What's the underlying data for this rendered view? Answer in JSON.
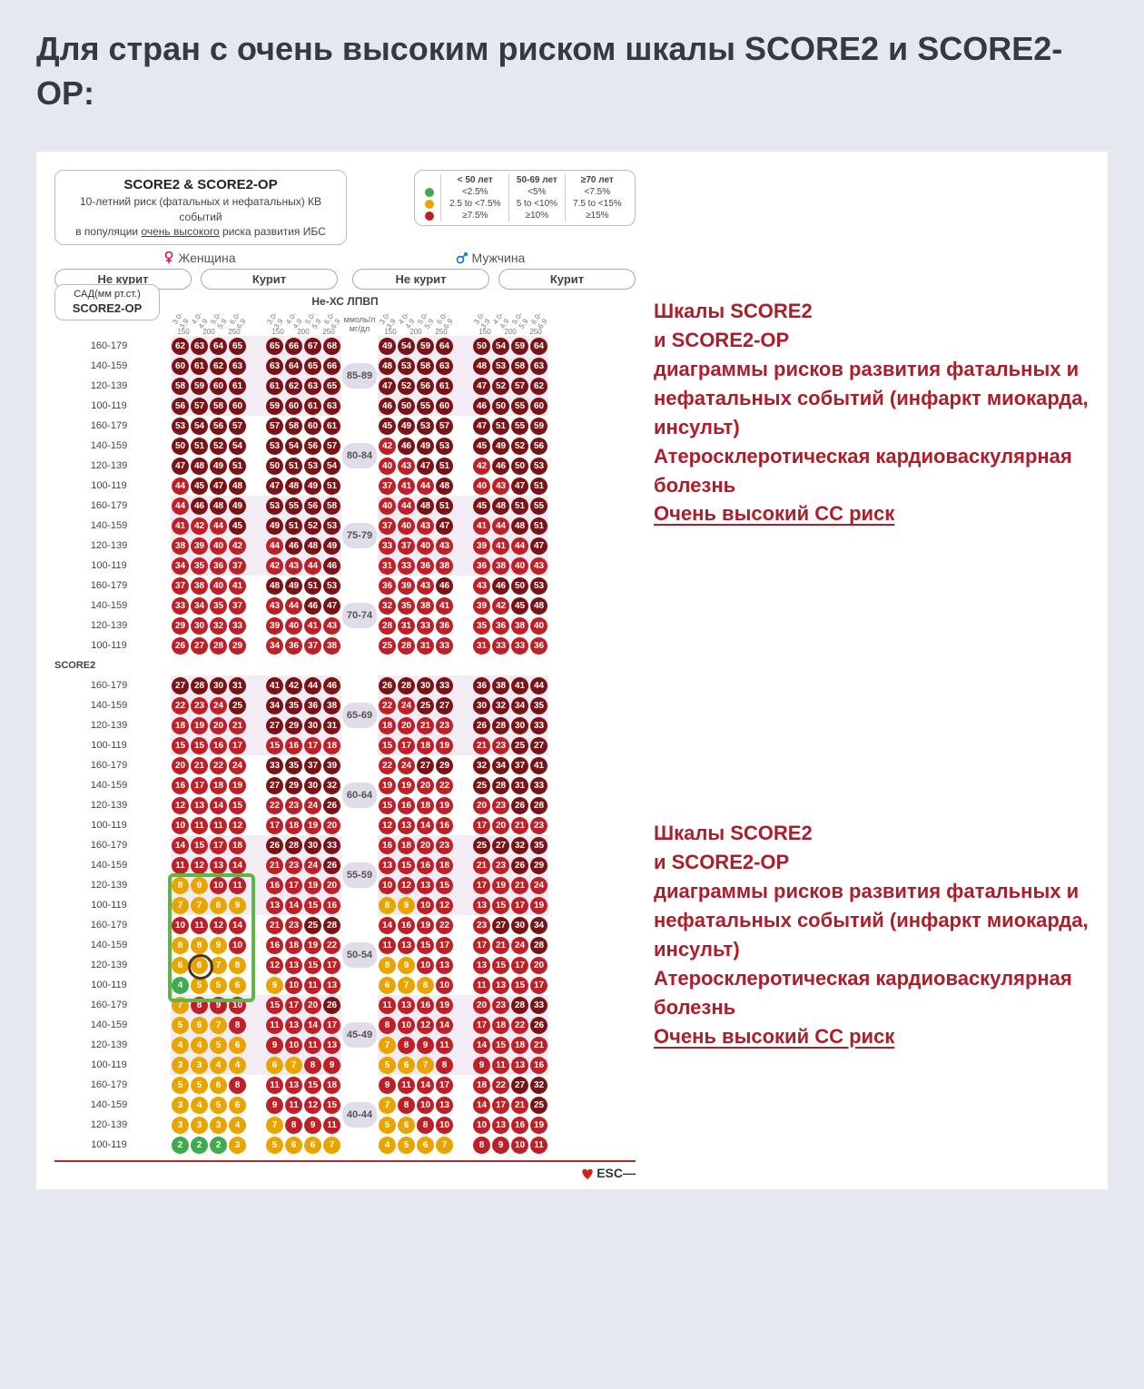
{
  "colors": {
    "green": "#3faa4e",
    "yellow": "#e9a400",
    "orange": "#e9a400",
    "red": "#bd2027",
    "darkred": "#7a1316",
    "page_bg": "#e5e9ef",
    "card_bg": "#ffffff",
    "title": "#333a45",
    "side_text": "#ad1e2b",
    "pill_bg": "#e2dbe8",
    "shade": "rgba(210,180,210,0.25)",
    "highlight": "#5fb548"
  },
  "heading": "Для стран с очень высоким риском шкалы SCORE2 и SCORE2-OP:",
  "chart_title": {
    "t1": "SCORE2 & SCORE2-OP",
    "t2": "10-летний риск (фатальных и нефатальных) КВ событий",
    "t3": "в популяции",
    "t3u": "очень высокого",
    "t3b": "риска развития ИБС"
  },
  "legend": {
    "cols": [
      "< 50 лет",
      "50-69 лет",
      "≥70 лет"
    ],
    "rows": [
      {
        "color": "green",
        "vals": [
          "<2.5%",
          "<5%",
          "<7.5%"
        ]
      },
      {
        "color": "orange",
        "vals": [
          "2.5 to <7.5%",
          "5 to <10%",
          "7.5 to <15%"
        ]
      },
      {
        "color": "red",
        "vals": [
          "≥7.5%",
          "≥10%",
          "≥15%"
        ]
      }
    ]
  },
  "gender": {
    "f": "Женщина",
    "m": "Мужчина"
  },
  "smoke": {
    "no": "Не курит",
    "yes": "Курит"
  },
  "unit_header": "Не-ХС ЛПВП",
  "units": {
    "top": "ммоль/л",
    "bot": "мг/дл"
  },
  "sbp_box": {
    "l1": "САД(мм рт.ст.)",
    "l2": "SCORE2-OP"
  },
  "section2_label": "SCORE2",
  "chol_labels_top": [
    "3.0-3.9",
    "4.0-4.9",
    "5.0-5.9",
    "6.0-6.9"
  ],
  "chol_labels_bot": [
    "150",
    "200",
    "250"
  ],
  "sbp_labels": [
    "160-179",
    "140-159",
    "120-139",
    "100-119"
  ],
  "age_groups_op": [
    "85-89",
    "80-84",
    "75-79",
    "70-74"
  ],
  "age_groups": [
    "65-69",
    "60-64",
    "55-59",
    "50-54",
    "45-49",
    "40-44"
  ],
  "data_op": {
    "85-89": {
      "f_no": [
        [
          62,
          63,
          64,
          65
        ],
        [
          60,
          61,
          62,
          63
        ],
        [
          58,
          59,
          60,
          61
        ],
        [
          56,
          57,
          58,
          60
        ]
      ],
      "f_yes": [
        [
          65,
          66,
          67,
          68
        ],
        [
          63,
          64,
          65,
          66
        ],
        [
          61,
          62,
          63,
          65
        ],
        [
          59,
          60,
          61,
          63
        ]
      ],
      "m_no": [
        [
          49,
          54,
          59,
          64
        ],
        [
          48,
          53,
          58,
          63
        ],
        [
          47,
          52,
          56,
          61
        ],
        [
          46,
          50,
          55,
          60
        ]
      ],
      "m_yes": [
        [
          50,
          54,
          59,
          64
        ],
        [
          48,
          53,
          58,
          63
        ],
        [
          47,
          52,
          57,
          62
        ],
        [
          46,
          50,
          55,
          60
        ]
      ]
    },
    "80-84": {
      "f_no": [
        [
          53,
          54,
          56,
          57
        ],
        [
          50,
          51,
          52,
          54
        ],
        [
          47,
          48,
          49,
          51
        ],
        [
          44,
          45,
          47,
          48
        ]
      ],
      "f_yes": [
        [
          57,
          58,
          60,
          61
        ],
        [
          53,
          54,
          56,
          57
        ],
        [
          50,
          51,
          53,
          54
        ],
        [
          47,
          48,
          49,
          51
        ]
      ],
      "m_no": [
        [
          45,
          49,
          53,
          57
        ],
        [
          42,
          46,
          49,
          53
        ],
        [
          40,
          43,
          47,
          51
        ],
        [
          37,
          41,
          44,
          48
        ]
      ],
      "m_yes": [
        [
          47,
          51,
          55,
          59
        ],
        [
          45,
          49,
          52,
          56
        ],
        [
          42,
          46,
          50,
          53
        ],
        [
          40,
          43,
          47,
          51
        ]
      ]
    },
    "75-79": {
      "f_no": [
        [
          44,
          46,
          48,
          49
        ],
        [
          41,
          42,
          44,
          45
        ],
        [
          38,
          39,
          40,
          42
        ],
        [
          34,
          35,
          36,
          37
        ]
      ],
      "f_yes": [
        [
          53,
          55,
          56,
          58
        ],
        [
          49,
          51,
          52,
          53
        ],
        [
          44,
          46,
          48,
          49
        ],
        [
          42,
          43,
          44,
          46
        ]
      ],
      "m_no": [
        [
          40,
          44,
          48,
          51
        ],
        [
          37,
          40,
          43,
          47
        ],
        [
          33,
          37,
          40,
          43
        ],
        [
          31,
          33,
          36,
          38
        ]
      ],
      "m_yes": [
        [
          45,
          48,
          51,
          55
        ],
        [
          41,
          44,
          48,
          51
        ],
        [
          39,
          41,
          44,
          47
        ],
        [
          36,
          38,
          40,
          43
        ]
      ]
    },
    "70-74": {
      "f_no": [
        [
          37,
          38,
          40,
          41
        ],
        [
          33,
          34,
          35,
          37
        ],
        [
          29,
          30,
          32,
          33
        ],
        [
          26,
          27,
          28,
          29
        ]
      ],
      "f_yes": [
        [
          48,
          49,
          51,
          53
        ],
        [
          43,
          44,
          46,
          47
        ],
        [
          39,
          40,
          41,
          43
        ],
        [
          34,
          36,
          37,
          38
        ]
      ],
      "m_no": [
        [
          36,
          39,
          43,
          46
        ],
        [
          32,
          35,
          38,
          41
        ],
        [
          28,
          31,
          33,
          36
        ],
        [
          25,
          28,
          31,
          33
        ]
      ],
      "m_yes": [
        [
          43,
          46,
          50,
          53
        ],
        [
          39,
          42,
          45,
          48
        ],
        [
          35,
          36,
          38,
          40
        ],
        [
          31,
          33,
          33,
          36
        ]
      ]
    }
  },
  "data": {
    "65-69": {
      "f_no": [
        [
          27,
          28,
          30,
          31
        ],
        [
          22,
          23,
          24,
          25
        ],
        [
          18,
          19,
          20,
          21
        ],
        [
          15,
          15,
          16,
          17
        ]
      ],
      "f_yes": [
        [
          41,
          42,
          44,
          46
        ],
        [
          34,
          35,
          36,
          38
        ],
        [
          27,
          29,
          30,
          31
        ],
        [
          15,
          16,
          17,
          18
        ]
      ],
      "m_no": [
        [
          26,
          28,
          30,
          33
        ],
        [
          22,
          24,
          25,
          27
        ],
        [
          18,
          20,
          21,
          23
        ],
        [
          15,
          17,
          18,
          19
        ]
      ],
      "m_yes": [
        [
          36,
          38,
          41,
          44
        ],
        [
          30,
          32,
          34,
          35
        ],
        [
          26,
          28,
          30,
          33
        ],
        [
          21,
          23,
          25,
          27
        ]
      ]
    },
    "60-64": {
      "f_no": [
        [
          20,
          21,
          22,
          24
        ],
        [
          16,
          17,
          18,
          19
        ],
        [
          12,
          13,
          14,
          15
        ],
        [
          10,
          11,
          11,
          12
        ]
      ],
      "f_yes": [
        [
          33,
          35,
          37,
          39
        ],
        [
          27,
          29,
          30,
          32
        ],
        [
          22,
          23,
          24,
          26
        ],
        [
          17,
          18,
          19,
          20
        ]
      ],
      "m_no": [
        [
          22,
          24,
          27,
          29
        ],
        [
          19,
          19,
          20,
          22
        ],
        [
          15,
          16,
          18,
          19
        ],
        [
          12,
          13,
          14,
          16
        ]
      ],
      "m_yes": [
        [
          32,
          34,
          37,
          41
        ],
        [
          25,
          28,
          31,
          33
        ],
        [
          20,
          23,
          26,
          28
        ],
        [
          17,
          20,
          21,
          23
        ]
      ]
    },
    "55-59": {
      "f_no": [
        [
          14,
          15,
          17,
          18
        ],
        [
          11,
          12,
          13,
          14
        ],
        [
          8,
          9,
          10,
          11
        ],
        [
          7,
          7,
          8,
          9
        ]
      ],
      "f_yes": [
        [
          26,
          28,
          30,
          33
        ],
        [
          21,
          23,
          24,
          26
        ],
        [
          16,
          17,
          19,
          20
        ],
        [
          13,
          14,
          15,
          16
        ]
      ],
      "m_no": [
        [
          16,
          18,
          20,
          23
        ],
        [
          13,
          15,
          16,
          18
        ],
        [
          10,
          12,
          13,
          15
        ],
        [
          8,
          9,
          10,
          12
        ]
      ],
      "m_yes": [
        [
          25,
          27,
          32,
          35
        ],
        [
          21,
          23,
          26,
          29
        ],
        [
          17,
          19,
          21,
          24
        ],
        [
          13,
          15,
          17,
          19
        ]
      ]
    },
    "50-54": {
      "f_no": [
        [
          10,
          11,
          12,
          14
        ],
        [
          8,
          8,
          9,
          10
        ],
        [
          6,
          6,
          7,
          8
        ],
        [
          4,
          5,
          5,
          6
        ]
      ],
      "f_yes": [
        [
          21,
          23,
          25,
          28
        ],
        [
          16,
          18,
          19,
          22
        ],
        [
          12,
          13,
          15,
          17
        ],
        [
          9,
          10,
          11,
          13
        ]
      ],
      "m_no": [
        [
          14,
          16,
          19,
          22
        ],
        [
          11,
          13,
          15,
          17
        ],
        [
          8,
          9,
          10,
          13
        ],
        [
          6,
          7,
          8,
          10
        ]
      ],
      "m_yes": [
        [
          23,
          27,
          30,
          34
        ],
        [
          17,
          21,
          24,
          28
        ],
        [
          13,
          15,
          17,
          20
        ],
        [
          11,
          13,
          15,
          17
        ]
      ]
    },
    "45-49": {
      "f_no": [
        [
          7,
          8,
          9,
          10
        ],
        [
          5,
          6,
          7,
          8
        ],
        [
          4,
          4,
          5,
          6
        ],
        [
          3,
          3,
          4,
          4
        ]
      ],
      "f_yes": [
        [
          15,
          17,
          20,
          26
        ],
        [
          11,
          13,
          14,
          17
        ],
        [
          9,
          10,
          11,
          13
        ],
        [
          6,
          7,
          8,
          9
        ]
      ],
      "m_no": [
        [
          11,
          13,
          16,
          19
        ],
        [
          8,
          10,
          12,
          14
        ],
        [
          7,
          8,
          9,
          11
        ],
        [
          5,
          6,
          7,
          8
        ]
      ],
      "m_yes": [
        [
          20,
          23,
          28,
          33
        ],
        [
          17,
          18,
          22,
          26
        ],
        [
          14,
          15,
          18,
          21
        ],
        [
          9,
          11,
          13,
          16
        ]
      ]
    },
    "40-44": {
      "f_no": [
        [
          5,
          5,
          6,
          8
        ],
        [
          3,
          4,
          5,
          6
        ],
        [
          3,
          3,
          3,
          4
        ],
        [
          2,
          2,
          2,
          3
        ]
      ],
      "f_yes": [
        [
          11,
          13,
          15,
          18
        ],
        [
          9,
          11,
          12,
          15
        ],
        [
          7,
          8,
          9,
          11
        ],
        [
          5,
          6,
          6,
          7
        ]
      ],
      "m_no": [
        [
          9,
          11,
          14,
          17
        ],
        [
          7,
          8,
          10,
          13
        ],
        [
          5,
          6,
          8,
          10
        ],
        [
          4,
          5,
          6,
          7
        ]
      ],
      "m_yes": [
        [
          18,
          22,
          27,
          32
        ],
        [
          14,
          17,
          21,
          25
        ],
        [
          10,
          13,
          16,
          19
        ],
        [
          8,
          9,
          10,
          11
        ]
      ]
    }
  },
  "thresholds": {
    "lt50": {
      "green": 2.5,
      "orange": 7.5
    },
    "50_69": {
      "green": 5,
      "orange": 10
    },
    "gte70": {
      "green": 7.5,
      "orange": 15
    }
  },
  "side": {
    "l1": "Шкалы SCORE2",
    "l2": "и SCORE2-OP",
    "l3": "диаграммы рисков развития фатальных и нефатальных событий (инфаркт миокарда, инсульт)",
    "l4": "Атеросклеротическая кардиоваскулярная болезнь",
    "l5": "Очень высокий СС риск"
  },
  "highlight": {
    "age": "50-54",
    "panel": "f_no",
    "circle_row": 2,
    "circle_col": 1
  },
  "footer": "ESC"
}
